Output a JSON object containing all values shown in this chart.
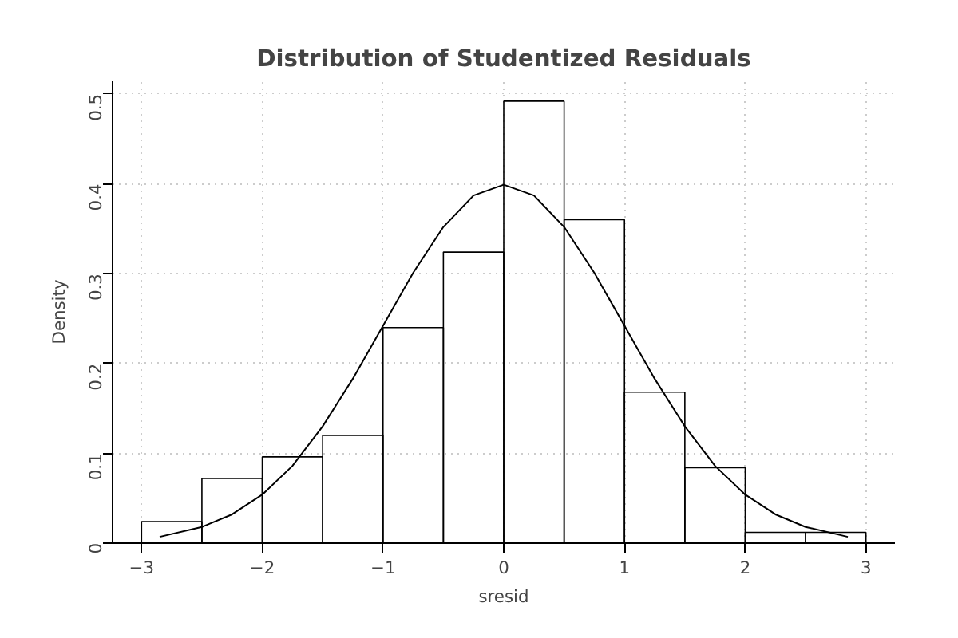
{
  "chart_data": {
    "type": "histogram",
    "title": "Distribution of Studentized Residuals",
    "xlabel": "sresid",
    "ylabel": "Density",
    "bins": [
      -3,
      -2.5,
      -2,
      -1.5,
      -1,
      -0.5,
      0,
      0.5,
      1,
      1.5,
      2,
      2.5,
      3
    ],
    "values": [
      0.024,
      0.072,
      0.096,
      0.12,
      0.24,
      0.324,
      0.492,
      0.36,
      0.168,
      0.084,
      0.012,
      0.012
    ],
    "color": "#000000",
    "series": [
      {
        "type": "line",
        "color": "#000000",
        "x": [
          -2.85,
          -2.5,
          -2.25,
          -2,
          -1.75,
          -1.5,
          -1.25,
          -1,
          -0.75,
          -0.5,
          -0.25,
          0,
          0.25,
          0.5,
          0.75,
          1,
          1.25,
          1.5,
          1.75,
          2,
          2.25,
          2.5,
          2.85
        ],
        "values": [
          0.007,
          0.018,
          0.032,
          0.054,
          0.086,
          0.13,
          0.183,
          0.242,
          0.301,
          0.352,
          0.387,
          0.399,
          0.387,
          0.352,
          0.301,
          0.242,
          0.183,
          0.13,
          0.086,
          0.054,
          0.032,
          0.018,
          0.007
        ]
      }
    ],
    "xlim": [
      -3.24,
      3.24
    ],
    "ylim": [
      0,
      0.515
    ],
    "xticks": [
      -3,
      -2,
      -1,
      0,
      1,
      2,
      3
    ],
    "yticks": [
      0,
      0.1,
      0.2,
      0.3,
      0.4,
      0.5
    ],
    "grid": true
  }
}
